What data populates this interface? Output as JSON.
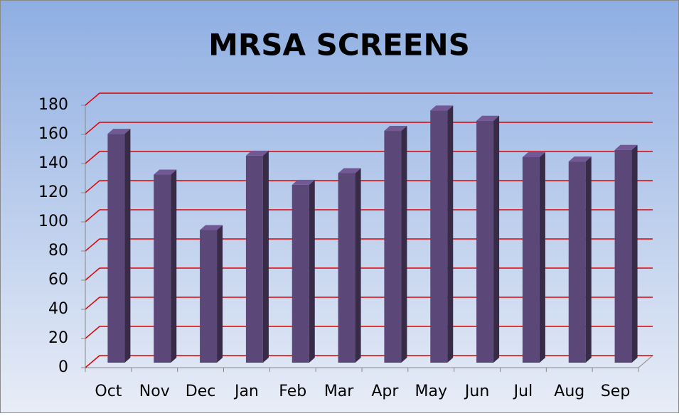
{
  "chart_data": {
    "type": "bar",
    "title": "MRSA SCREENS",
    "categories": [
      "Oct",
      "Nov",
      "Dec",
      "Jan",
      "Feb",
      "Mar",
      "Apr",
      "May",
      "Jun",
      "Jul",
      "Aug",
      "Sep"
    ],
    "values": [
      157,
      129,
      91,
      142,
      122,
      130,
      159,
      173,
      166,
      141,
      138,
      146
    ],
    "color": "#5b4778",
    "ylim": [
      0,
      180
    ],
    "yticks": [
      0,
      20,
      40,
      60,
      80,
      100,
      120,
      140,
      160,
      180
    ],
    "grid": true,
    "grid_color": "#e00000"
  }
}
